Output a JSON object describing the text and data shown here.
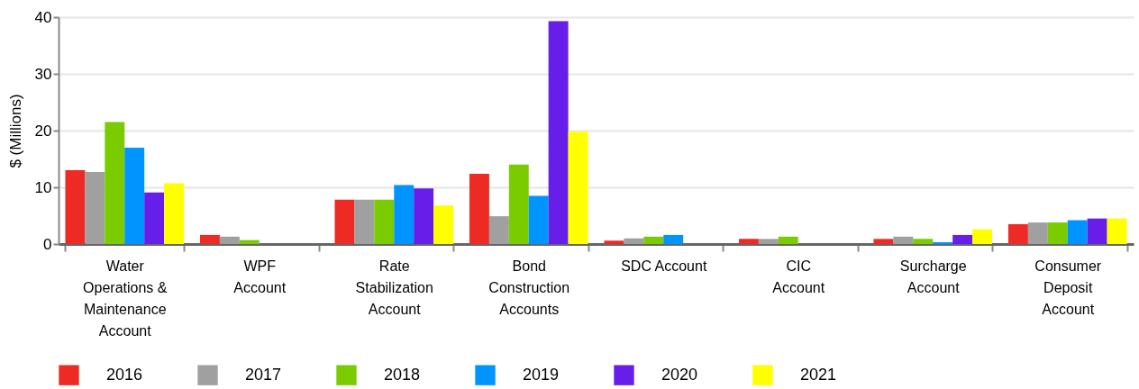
{
  "chart_data": {
    "type": "bar",
    "ylabel": "$ (Millions)",
    "categories": [
      "Water\nOperations &\nMaintenance\nAccount",
      "WPF\nAccount",
      "Rate\nStabilization\nAccount",
      "Bond\nConstruction\nAccounts",
      "SDC Account",
      "CIC\nAccount",
      "Surcharge\nAccount",
      "Consumer\nDeposit\nAccount"
    ],
    "series": [
      {
        "name": "2016",
        "color": "#ee2a24",
        "values": [
          13.0,
          1.6,
          7.8,
          12.4,
          0.6,
          0.9,
          0.9,
          3.5
        ]
      },
      {
        "name": "2017",
        "color": "#a0a0a0",
        "values": [
          12.7,
          1.3,
          7.8,
          4.9,
          1.0,
          0.9,
          1.3,
          3.8
        ]
      },
      {
        "name": "2018",
        "color": "#7acc00",
        "values": [
          21.5,
          0.7,
          7.8,
          14.0,
          1.3,
          1.3,
          0.9,
          3.8
        ]
      },
      {
        "name": "2019",
        "color": "#0094ff",
        "values": [
          17.0,
          null,
          10.4,
          8.5,
          1.6,
          null,
          0.3,
          4.2
        ]
      },
      {
        "name": "2020",
        "color": "#661ee8",
        "values": [
          9.1,
          null,
          9.8,
          39.3,
          null,
          null,
          1.6,
          4.5
        ]
      },
      {
        "name": "2021",
        "color": "#ffff00",
        "values": [
          10.7,
          null,
          6.8,
          19.8,
          null,
          null,
          2.6,
          4.5
        ]
      }
    ],
    "ylim": [
      0,
      40
    ],
    "yticks": [
      0,
      10,
      20,
      30,
      40
    ],
    "grid": "y",
    "legend": "bottom"
  }
}
